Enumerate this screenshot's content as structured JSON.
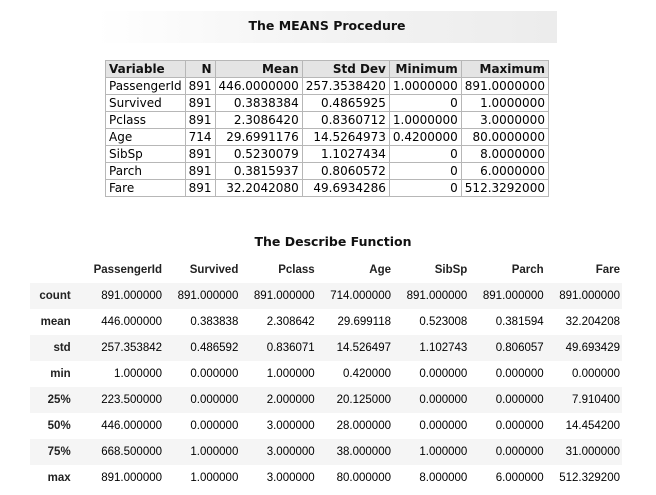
{
  "means": {
    "title": "The MEANS Procedure",
    "headers": [
      "Variable",
      "N",
      "Mean",
      "Std Dev",
      "Minimum",
      "Maximum"
    ],
    "rows": [
      [
        "PassengerId",
        "891",
        "446.0000000",
        "257.3538420",
        "1.0000000",
        "891.0000000"
      ],
      [
        "Survived",
        "891",
        "0.3838384",
        "0.4865925",
        "0",
        "1.0000000"
      ],
      [
        "Pclass",
        "891",
        "2.3086420",
        "0.8360712",
        "1.0000000",
        "3.0000000"
      ],
      [
        "Age",
        "714",
        "29.6991176",
        "14.5264973",
        "0.4200000",
        "80.0000000"
      ],
      [
        "SibSp",
        "891",
        "0.5230079",
        "1.1027434",
        "0",
        "8.0000000"
      ],
      [
        "Parch",
        "891",
        "0.3815937",
        "0.8060572",
        "0",
        "6.0000000"
      ],
      [
        "Fare",
        "891",
        "32.2042080",
        "49.6934286",
        "0",
        "512.3292000"
      ]
    ]
  },
  "describe": {
    "title": "The Describe Function",
    "headers": [
      "",
      "PassengerId",
      "Survived",
      "Pclass",
      "Age",
      "SibSp",
      "Parch",
      "Fare"
    ],
    "rows": [
      [
        "count",
        "891.000000",
        "891.000000",
        "891.000000",
        "714.000000",
        "891.000000",
        "891.000000",
        "891.000000"
      ],
      [
        "mean",
        "446.000000",
        "0.383838",
        "2.308642",
        "29.699118",
        "0.523008",
        "0.381594",
        "32.204208"
      ],
      [
        "std",
        "257.353842",
        "0.486592",
        "0.836071",
        "14.526497",
        "1.102743",
        "0.806057",
        "49.693429"
      ],
      [
        "min",
        "1.000000",
        "0.000000",
        "1.000000",
        "0.420000",
        "0.000000",
        "0.000000",
        "0.000000"
      ],
      [
        "25%",
        "223.500000",
        "0.000000",
        "2.000000",
        "20.125000",
        "0.000000",
        "0.000000",
        "7.910400"
      ],
      [
        "50%",
        "446.000000",
        "0.000000",
        "3.000000",
        "28.000000",
        "0.000000",
        "0.000000",
        "14.454200"
      ],
      [
        "75%",
        "668.500000",
        "1.000000",
        "3.000000",
        "38.000000",
        "1.000000",
        "0.000000",
        "31.000000"
      ],
      [
        "max",
        "891.000000",
        "1.000000",
        "3.000000",
        "80.000000",
        "8.000000",
        "6.000000",
        "512.329200"
      ]
    ]
  }
}
